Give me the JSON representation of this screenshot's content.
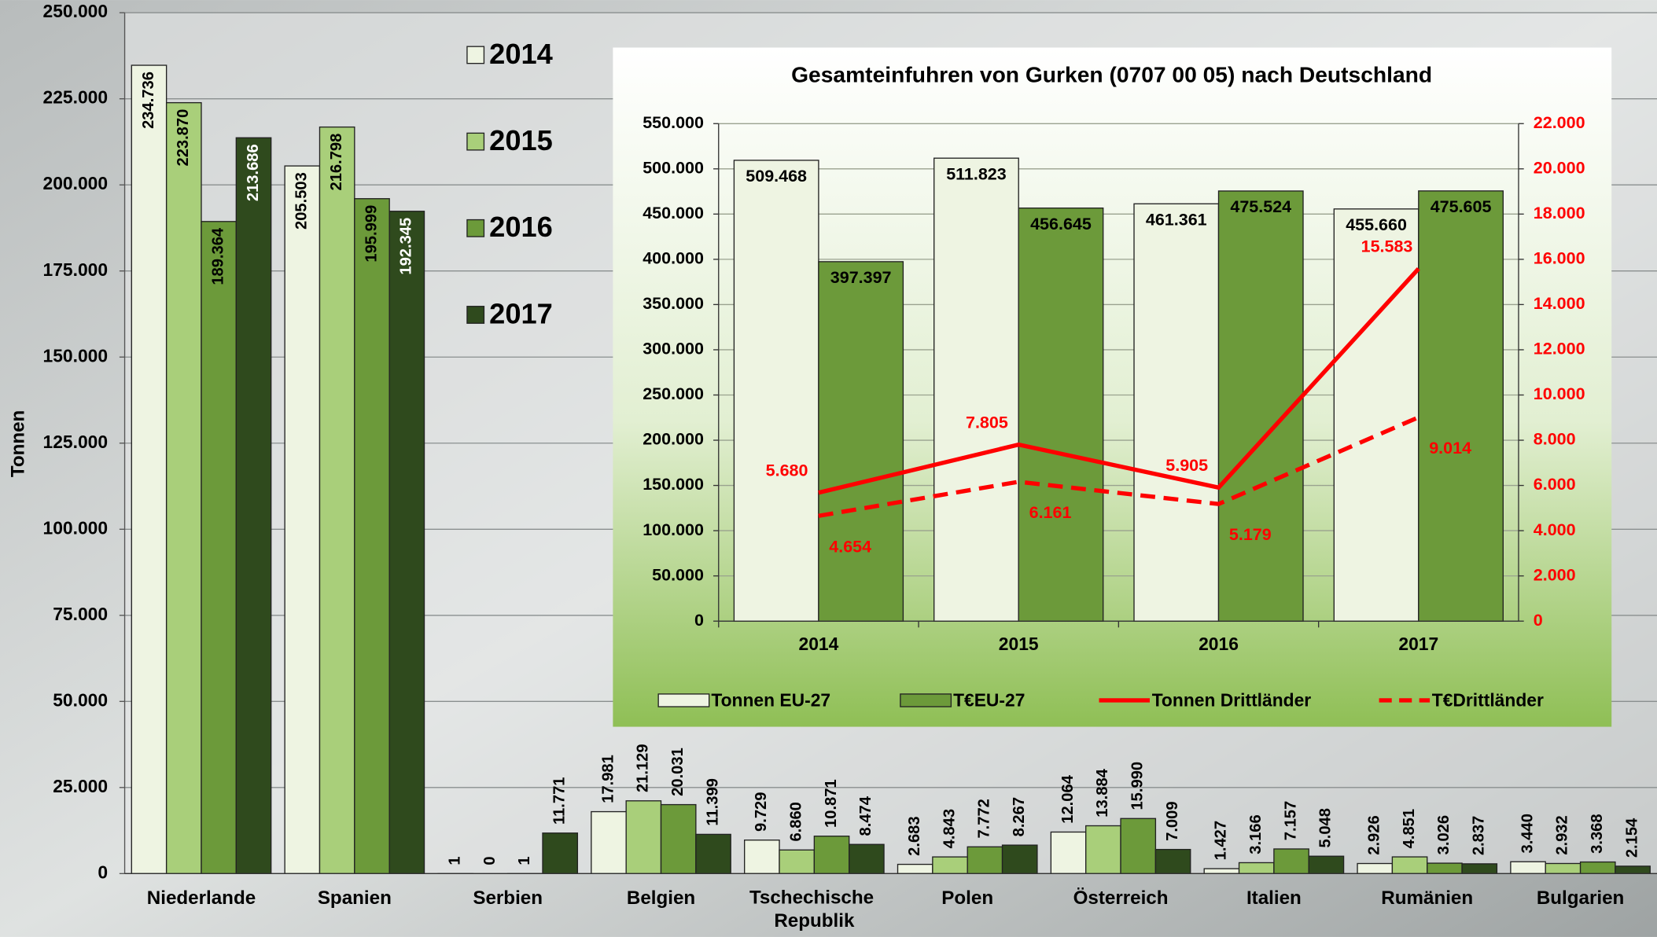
{
  "chart_data": [
    {
      "type": "bar",
      "y_label": "Tonnen",
      "categories": [
        "Niederlande",
        "Spanien",
        "Serbien",
        "Belgien",
        "Tschechische Republik",
        "Polen",
        "Österreich",
        "Italien",
        "Rumänien",
        "Bulgarien"
      ],
      "series": [
        {
          "name": "2014",
          "color": "#eef4e2",
          "values": [
            234736,
            205503,
            1,
            17981,
            9729,
            2683,
            12064,
            1427,
            2926,
            3440
          ],
          "value_labels": [
            "234.736",
            "205.503",
            "1",
            "17.981",
            "9.729",
            "2.683",
            "12.064",
            "1.427",
            "2.926",
            "3.440"
          ]
        },
        {
          "name": "2015",
          "color": "#a9cf7a",
          "values": [
            223870,
            216798,
            0,
            21129,
            6860,
            4843,
            13884,
            3166,
            4851,
            2932
          ],
          "value_labels": [
            "223.870",
            "216.798",
            "0",
            "21.129",
            "6.860",
            "4.843",
            "13.884",
            "3.166",
            "4.851",
            "2.932"
          ]
        },
        {
          "name": "2016",
          "color": "#6c9a3a",
          "values": [
            189364,
            195999,
            1,
            20031,
            10871,
            7772,
            15990,
            7157,
            3026,
            3368
          ],
          "value_labels": [
            "189.364",
            "195.999",
            "1",
            "20.031",
            "10.871",
            "7.772",
            "15.990",
            "7.157",
            "3.026",
            "3.368"
          ]
        },
        {
          "name": "2017",
          "color": "#2f4a1d",
          "values": [
            213686,
            192345,
            11771,
            11399,
            8474,
            8267,
            7009,
            5048,
            2837,
            2154
          ],
          "value_labels": [
            "213.686",
            "192.345",
            "11.771",
            "11.399",
            "8.474",
            "8.267",
            "7.009",
            "5.048",
            "2.837",
            "2.154"
          ]
        }
      ],
      "ylim": [
        0,
        250000
      ],
      "yticks": [
        0,
        {
          "value": 25000,
          "label": "25.000"
        },
        {
          "value": 50000,
          "label": "50.000"
        },
        {
          "value": 75000,
          "label": "75.000"
        },
        {
          "value": 100000,
          "label": "100.000"
        },
        {
          "value": 125000,
          "label": "125.000"
        },
        {
          "value": 150000,
          "label": "150.000"
        },
        {
          "value": 175000,
          "label": "175.000"
        },
        {
          "value": 200000,
          "label": "200.000"
        },
        {
          "value": 225000,
          "label": "225.000"
        },
        {
          "value": 250000,
          "label": "250.000"
        }
      ],
      "grid": true
    },
    {
      "type": "bar",
      "title": "Gesamteinfuhren von Gurken (0707 00 05) nach Deutschland",
      "categories": [
        "2014",
        "2015",
        "2016",
        "2017"
      ],
      "series": [
        {
          "name": "Tonnen EU-27",
          "type": "bar",
          "color": "#eef4e2",
          "values": [
            509468,
            511823,
            461361,
            455660
          ],
          "value_labels": [
            "509.468",
            "511.823",
            "461.361",
            "455.660"
          ]
        },
        {
          "name": "T€EU-27",
          "type": "bar",
          "color": "#6c9a3a",
          "values": [
            397397,
            456645,
            475524,
            475605
          ],
          "value_labels": [
            "397.397",
            "456.645",
            "475.524",
            "475.605"
          ]
        },
        {
          "name": "Tonnen Drittländer",
          "type": "line",
          "axis": "y2",
          "color": "#ff0000",
          "dashed": false,
          "values": [
            5680,
            7805,
            5905,
            15583
          ],
          "value_labels": [
            "5.680",
            "7.805",
            "5.905",
            "15.583"
          ]
        },
        {
          "name": "T€Drittländer",
          "type": "line",
          "axis": "y2",
          "color": "#ff0000",
          "dashed": true,
          "values": [
            4654,
            6161,
            5179,
            9014
          ],
          "value_labels": [
            "4.654",
            "6.161",
            "5.179",
            "9.014"
          ]
        }
      ],
      "ylim": [
        0,
        550000
      ],
      "yticks": [
        0,
        {
          "value": 50000,
          "label": "50.000"
        },
        {
          "value": 100000,
          "label": "100.000"
        },
        {
          "value": 150000,
          "label": "150.000"
        },
        {
          "value": 200000,
          "label": "200.000"
        },
        {
          "value": 250000,
          "label": "250.000"
        },
        {
          "value": 300000,
          "label": "300.000"
        },
        {
          "value": 350000,
          "label": "350.000"
        },
        {
          "value": 400000,
          "label": "400.000"
        },
        {
          "value": 450000,
          "label": "450.000"
        },
        {
          "value": 500000,
          "label": "500.000"
        },
        {
          "value": 550000,
          "label": "550.000"
        }
      ],
      "y2lim": [
        0,
        22000
      ],
      "y2ticks": [
        0,
        {
          "value": 2000,
          "label": "2.000"
        },
        {
          "value": 4000,
          "label": "4.000"
        },
        {
          "value": 6000,
          "label": "6.000"
        },
        {
          "value": 8000,
          "label": "8.000"
        },
        {
          "value": 10000,
          "label": "10.000"
        },
        {
          "value": 12000,
          "label": "12.000"
        },
        {
          "value": 14000,
          "label": "14.000"
        },
        {
          "value": 16000,
          "label": "16.000"
        },
        {
          "value": 18000,
          "label": "18.000"
        },
        {
          "value": 20000,
          "label": "20.000"
        },
        {
          "value": 22000,
          "label": "22.000"
        }
      ],
      "y2_color": "#ff0000",
      "grid": true
    }
  ]
}
